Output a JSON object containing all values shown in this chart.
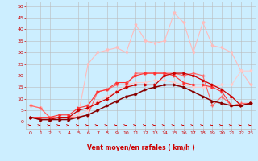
{
  "x": [
    0,
    1,
    2,
    3,
    4,
    5,
    6,
    7,
    8,
    9,
    10,
    11,
    12,
    13,
    14,
    15,
    16,
    17,
    18,
    19,
    20,
    21,
    22,
    23
  ],
  "line_light1": [
    7,
    6,
    2,
    2,
    2,
    3,
    25,
    30,
    31,
    32,
    30,
    42,
    35,
    34,
    35,
    47,
    43,
    30,
    43,
    33,
    32,
    30,
    22,
    16
  ],
  "line_light2": [
    7,
    6,
    2,
    2,
    2,
    3,
    5,
    9,
    11,
    13,
    16,
    17,
    17,
    18,
    18,
    17,
    16,
    15,
    15,
    15,
    16,
    16,
    22,
    22
  ],
  "line_med1": [
    7,
    6,
    2,
    2,
    2,
    2,
    3,
    13,
    14,
    16,
    16,
    21,
    21,
    21,
    21,
    21,
    20,
    21,
    20,
    7,
    11,
    7,
    8,
    8
  ],
  "line_med2": [
    2,
    2,
    2,
    3,
    3,
    6,
    7,
    13,
    14,
    17,
    17,
    20,
    21,
    21,
    21,
    20,
    17,
    16,
    16,
    15,
    13,
    7,
    7,
    8
  ],
  "line_dark1": [
    2,
    1,
    1,
    2,
    2,
    5,
    6,
    8,
    10,
    13,
    15,
    16,
    16,
    16,
    20,
    21,
    21,
    20,
    18,
    16,
    14,
    11,
    7,
    8
  ],
  "line_dark2": [
    2,
    1,
    1,
    1,
    1,
    2,
    3,
    5,
    7,
    9,
    11,
    12,
    14,
    15,
    16,
    16,
    15,
    13,
    11,
    9,
    8,
    7,
    7,
    8
  ],
  "bg_color": "#cceeff",
  "grid_color": "#bbbbbb",
  "c_light1": "#ffbbbb",
  "c_light2": "#ffcccc",
  "c_med1": "#ff6666",
  "c_med2": "#ff3333",
  "c_dark1": "#cc0000",
  "c_dark2": "#880000",
  "arrow_color": "#cc0000",
  "xlabel": "Vent moyen/en rafales ( km/h )",
  "xlabel_color": "#cc0000",
  "tick_color": "#cc0000",
  "ylim": [
    -3,
    52
  ],
  "xlim": [
    -0.5,
    23.5
  ],
  "yticks": [
    0,
    5,
    10,
    15,
    20,
    25,
    30,
    35,
    40,
    45,
    50
  ],
  "xticks": [
    0,
    1,
    2,
    3,
    4,
    5,
    6,
    7,
    8,
    9,
    10,
    11,
    12,
    13,
    14,
    15,
    16,
    17,
    18,
    19,
    20,
    21,
    22,
    23
  ]
}
